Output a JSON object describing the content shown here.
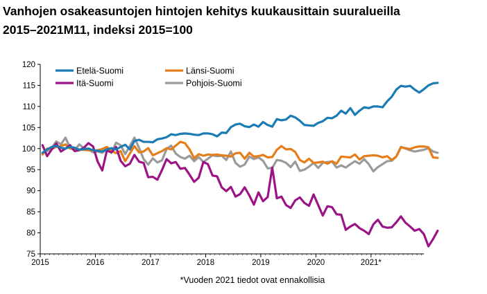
{
  "header": {
    "title_line1": "Vanhojen osakeasuntojen hintojen kehitys kuukausittain suuralueilla",
    "title_line2": "2015–2021M11, indeksi 2015=100"
  },
  "footnote": "*Vuoden 2021 tiedot ovat ennakollisia",
  "chart_data": {
    "type": "line",
    "title": "Vanhojen osakeasuntojen hintojen kehitys kuukausittain suuralueilla 2015–2021M11, indeksi 2015=100",
    "xlabel": "",
    "ylabel": "",
    "x_tick_labels": [
      "2015",
      "2016",
      "2017",
      "2018",
      "2019",
      "2020",
      "2021*"
    ],
    "x_range": [
      "2015-01",
      "2021-11"
    ],
    "ylim": [
      75,
      120
    ],
    "y_ticks": [
      75,
      80,
      85,
      90,
      95,
      100,
      105,
      110,
      115,
      120
    ],
    "grid": false,
    "legend_position": "top-left",
    "series": [
      {
        "name": "Etelä-Suomi",
        "color": "#1a7bb5",
        "values": [
          99.0,
          99.8,
          100.4,
          100.6,
          100.2,
          100.0,
          100.4,
          100.2,
          99.7,
          99.9,
          100.0,
          99.6,
          99.5,
          99.3,
          99.8,
          100.1,
          99.8,
          100.4,
          100.9,
          99.8,
          101.8,
          102.1,
          101.6,
          101.6,
          101.5,
          102.2,
          102.4,
          102.7,
          103.4,
          103.2,
          103.5,
          103.6,
          103.5,
          103.3,
          103.2,
          103.6,
          103.6,
          103.4,
          102.9,
          103.8,
          103.7,
          105.1,
          105.7,
          105.9,
          105.3,
          105.1,
          105.7,
          105.2,
          106.3,
          105.6,
          105.2,
          107.0,
          106.7,
          106.9,
          107.8,
          107.4,
          106.6,
          105.6,
          105.5,
          105.4,
          106.1,
          106.5,
          107.3,
          107.2,
          107.8,
          109.0,
          108.3,
          109.6,
          108.0,
          109.0,
          109.8,
          109.6,
          110.0,
          110.0,
          109.8,
          111.2,
          112.3,
          114.0,
          114.9,
          114.7,
          114.9,
          114.0,
          113.3,
          114.1,
          115.0,
          115.5,
          115.6
        ]
      },
      {
        "name": "Länsi-Suomi",
        "color": "#e57e1a",
        "values": [
          98.6,
          100.0,
          99.9,
          100.4,
          100.6,
          101.0,
          100.0,
          100.1,
          99.8,
          99.7,
          99.6,
          99.5,
          99.6,
          99.9,
          100.4,
          99.5,
          98.9,
          99.4,
          97.0,
          98.8,
          100.6,
          99.1,
          99.3,
          100.1,
          98.4,
          98.9,
          99.4,
          100.1,
          99.8,
          100.7,
          101.6,
          101.3,
          99.8,
          97.7,
          98.7,
          98.3,
          98.6,
          98.5,
          98.6,
          98.4,
          98.3,
          98.1,
          98.9,
          99.0,
          97.6,
          99.0,
          98.1,
          98.2,
          98.5,
          97.9,
          98.0,
          99.7,
          100.6,
          99.8,
          99.9,
          99.2,
          97.3,
          96.7,
          97.6,
          96.6,
          96.7,
          96.9,
          96.4,
          97.0,
          96.4,
          98.1,
          98.0,
          97.9,
          98.6,
          97.4,
          98.2,
          98.3,
          98.4,
          98.3,
          97.9,
          98.2,
          97.3,
          98.1,
          100.3,
          100.1,
          99.9,
          100.3,
          100.5,
          100.5,
          100.3,
          97.9,
          97.8
        ]
      },
      {
        "name": "Itä-Suomi",
        "color": "#9b1486",
        "values": [
          100.8,
          98.2,
          99.8,
          101.2,
          99.3,
          100.0,
          100.8,
          99.4,
          99.6,
          100.2,
          101.3,
          100.5,
          96.9,
          94.8,
          99.5,
          99.1,
          100.4,
          97.1,
          95.8,
          96.4,
          98.5,
          96.9,
          96.6,
          93.2,
          93.3,
          92.6,
          94.9,
          97.5,
          96.5,
          96.8,
          95.2,
          95.4,
          93.8,
          92.1,
          93.1,
          96.8,
          96.3,
          93.6,
          93.4,
          90.8,
          89.9,
          90.9,
          88.6,
          89.2,
          90.8,
          88.9,
          86.7,
          89.6,
          87.5,
          88.5,
          95.5,
          88.2,
          88.6,
          86.6,
          85.9,
          87.7,
          88.4,
          87.1,
          86.4,
          89.1,
          86.6,
          84.1,
          86.3,
          86.1,
          84.4,
          84.3,
          80.7,
          81.5,
          82.1,
          81.1,
          80.5,
          79.7,
          82.0,
          83.1,
          81.5,
          81.2,
          81.3,
          82.5,
          83.9,
          82.4,
          81.5,
          80.5,
          80.9,
          79.7,
          76.8,
          78.5,
          80.5
        ]
      },
      {
        "name": "Pohjois-Suomi",
        "color": "#9a9a9a",
        "values": [
          98.9,
          99.4,
          100.2,
          101.7,
          101.0,
          102.6,
          100.1,
          99.6,
          101.0,
          100.1,
          99.8,
          99.1,
          99.3,
          99.0,
          99.9,
          99.0,
          101.4,
          100.8,
          98.7,
          100.6,
          102.6,
          100.2,
          97.5,
          96.2,
          97.7,
          96.7,
          97.2,
          99.9,
          100.7,
          98.8,
          98.0,
          97.6,
          98.3,
          97.0,
          98.0,
          96.8,
          97.6,
          98.4,
          98.2,
          98.3,
          97.3,
          99.3,
          96.6,
          95.7,
          96.2,
          98.1,
          97.5,
          97.9,
          97.1,
          95.3,
          95.4,
          97.3,
          97.1,
          96.6,
          95.6,
          96.9,
          94.7,
          95.0,
          95.7,
          96.6,
          95.4,
          96.6,
          96.8,
          96.9,
          95.5,
          96.0,
          95.5,
          96.3,
          97.0,
          96.4,
          97.5,
          96.3,
          94.6,
          95.6,
          96.3,
          97.0,
          97.1,
          98.1,
          100.4,
          100.0,
          99.6,
          99.3,
          99.5,
          99.7,
          100.1,
          99.3,
          99.0
        ]
      }
    ]
  }
}
